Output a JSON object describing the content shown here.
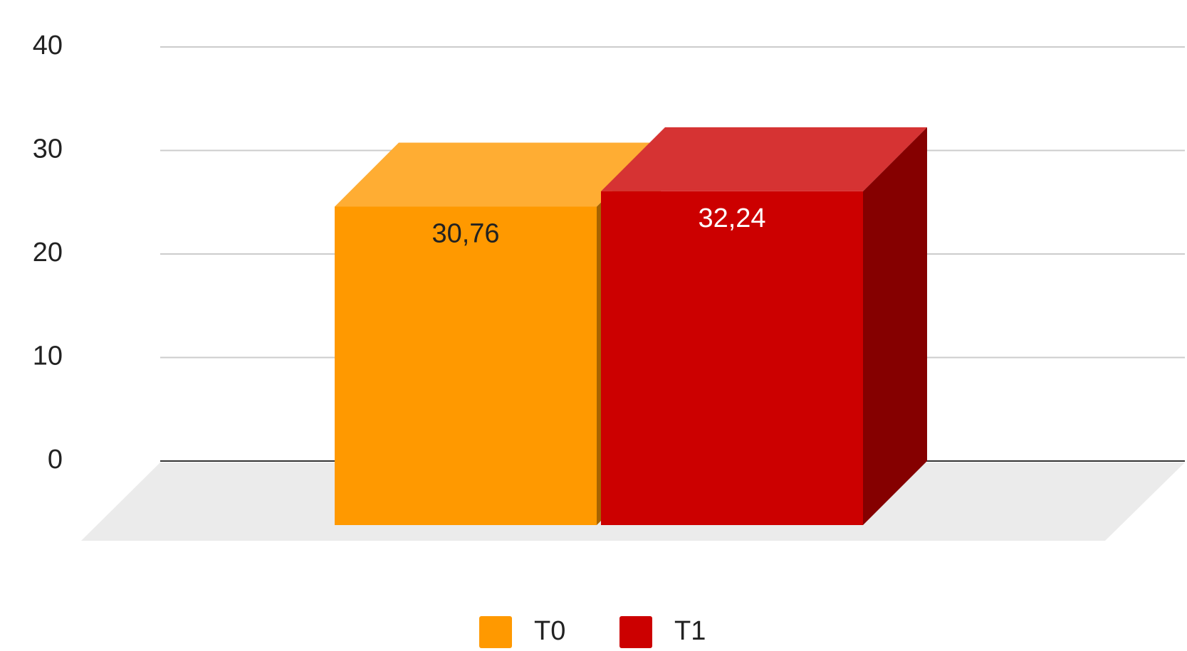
{
  "chart_data": {
    "type": "bar3d",
    "categories": [
      null
    ],
    "series": [
      {
        "name": "T0",
        "color": "#ff9900",
        "values": [
          30.76
        ],
        "value_labels": [
          "30,76"
        ],
        "label_color": "#222222"
      },
      {
        "name": "T1",
        "color": "#cc0000",
        "values": [
          32.24
        ],
        "value_labels": [
          "32,24"
        ],
        "label_color": "#ffffff"
      }
    ],
    "ylim": [
      0,
      40
    ],
    "yticks": [
      0,
      10,
      20,
      30,
      40
    ],
    "grid": true,
    "legend": "bottom"
  }
}
